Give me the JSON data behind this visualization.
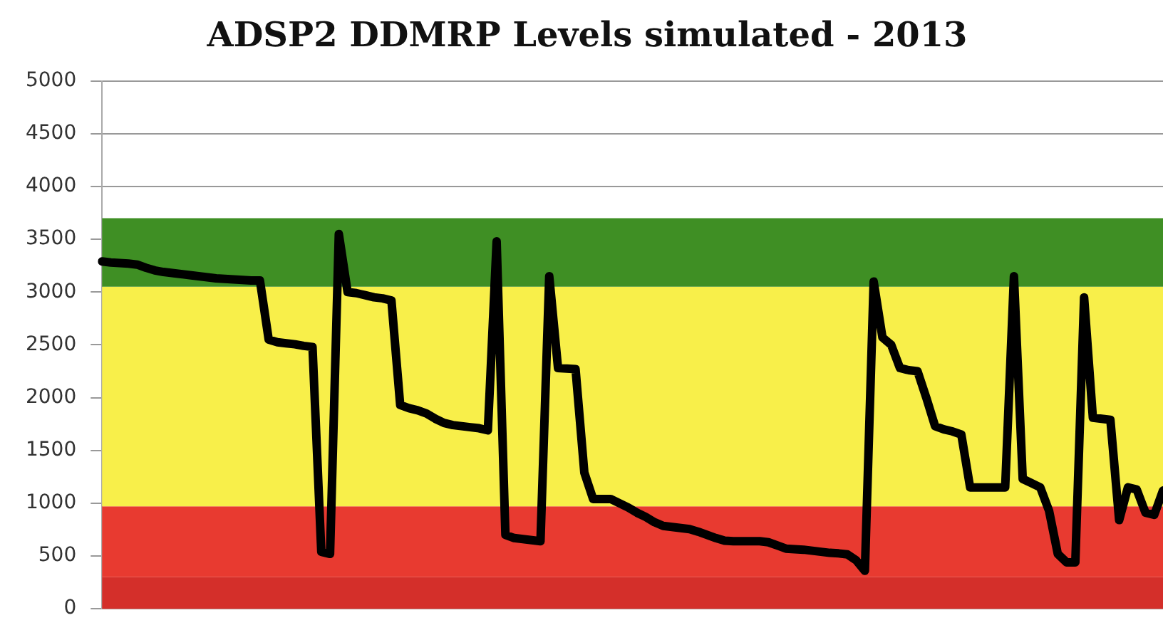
{
  "chart_data": {
    "type": "line",
    "title": "ADSP2 DDMRP Levels simulated - 2013",
    "categories": [
      null,
      null,
      null,
      null,
      null,
      null,
      null,
      null,
      null,
      null,
      null,
      null,
      null,
      null,
      null,
      null,
      null,
      null,
      null,
      null,
      null,
      null,
      null,
      null,
      null,
      null,
      null,
      null,
      null,
      null,
      null,
      null,
      null,
      null,
      null,
      null,
      null,
      null,
      null,
      null,
      null,
      null,
      null,
      null,
      null,
      null,
      null,
      null,
      null,
      null,
      null,
      null,
      null,
      null,
      null,
      null,
      null,
      null,
      null,
      null,
      null,
      null,
      null,
      null,
      null,
      null,
      null,
      null,
      null,
      null,
      null,
      null,
      null,
      null,
      null,
      null,
      null,
      null,
      null,
      null,
      null,
      null,
      null,
      null,
      null,
      null,
      null,
      null,
      null,
      null,
      null,
      null,
      null,
      null,
      null,
      null,
      null,
      null,
      null,
      null,
      null,
      null,
      null,
      null,
      null,
      null,
      null,
      null,
      null,
      null,
      null,
      null,
      null,
      null,
      null,
      null,
      null,
      null,
      null,
      null,
      null,
      null
    ],
    "series": [
      {
        "color": "#000000",
        "values": [
          3290,
          3280,
          3275,
          3270,
          3260,
          3230,
          3205,
          3190,
          3180,
          3170,
          3160,
          3150,
          3140,
          3130,
          3125,
          3120,
          3115,
          3110,
          3110,
          2550,
          2525,
          2515,
          2505,
          2490,
          2480,
          540,
          520,
          3550,
          3000,
          2990,
          2970,
          2950,
          2940,
          2920,
          1930,
          1900,
          1880,
          1850,
          1800,
          1760,
          1740,
          1730,
          1720,
          1710,
          1690,
          3480,
          700,
          670,
          660,
          650,
          640,
          3150,
          2280,
          2275,
          2270,
          1290,
          1040,
          1040,
          1040,
          1000,
          960,
          910,
          870,
          820,
          785,
          775,
          765,
          755,
          730,
          700,
          670,
          645,
          640,
          640,
          640,
          640,
          630,
          600,
          570,
          565,
          560,
          550,
          540,
          530,
          525,
          515,
          460,
          360,
          3100,
          2570,
          2500,
          2280,
          2260,
          2250,
          2000,
          1730,
          1700,
          1680,
          1650,
          1150,
          1150,
          1150,
          1150,
          1150,
          3150,
          1230,
          1190,
          1150,
          930,
          520,
          440,
          440,
          2950,
          1810,
          1800,
          1790,
          840,
          1150,
          1130,
          910,
          890,
          1120
        ]
      }
    ],
    "ylim": [
      0,
      5000
    ],
    "yticks": [
      0,
      500,
      1000,
      1500,
      2000,
      2500,
      3000,
      3500,
      4000,
      4500,
      5000
    ],
    "bands": [
      {
        "axis": "y",
        "from": 0,
        "to": 300,
        "color": "#d42f2a"
      },
      {
        "axis": "y",
        "from": 300,
        "to": 970,
        "color": "#e83a30"
      },
      {
        "axis": "y",
        "from": 970,
        "to": 3050,
        "color": "#f8ef4a"
      },
      {
        "axis": "y",
        "from": 3050,
        "to": 3700,
        "color": "#3f8f24"
      }
    ],
    "grid": "y",
    "legend": false,
    "tick_labels": "y",
    "marker": "none",
    "line_style": "solid"
  }
}
